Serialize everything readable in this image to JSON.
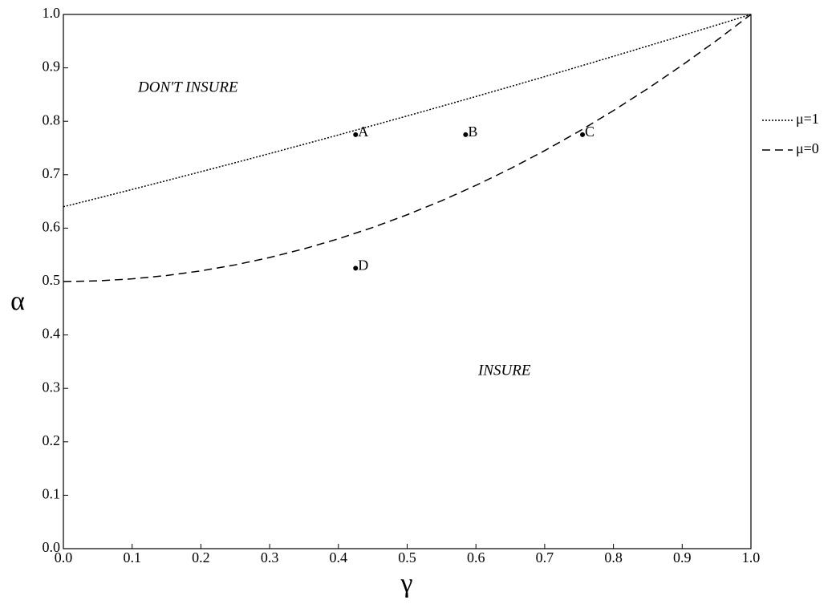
{
  "chart_data": {
    "type": "line",
    "xlabel": "γ",
    "ylabel": "α",
    "x": [
      0,
      0.05,
      0.1,
      0.15,
      0.2,
      0.25,
      0.3,
      0.35,
      0.4,
      0.45,
      0.5,
      0.55,
      0.6,
      0.65,
      0.7,
      0.75,
      0.8,
      0.85,
      0.9,
      0.95,
      1
    ],
    "series": [
      {
        "name": "μ=1",
        "color": "#000",
        "style": "dotted",
        "values": [
          0.64,
          0.6561,
          0.6724,
          0.6889,
          0.7056,
          0.7225,
          0.7396,
          0.7569,
          0.7744,
          0.7921,
          0.81,
          0.8281,
          0.8464,
          0.8649,
          0.8836,
          0.9025,
          0.9216,
          0.9409,
          0.9604,
          0.9801,
          1
        ]
      },
      {
        "name": "μ=0",
        "color": "#000",
        "style": "dashed",
        "values": [
          0.5,
          0.50125,
          0.505,
          0.51125,
          0.52,
          0.53125,
          0.545,
          0.56125,
          0.58,
          0.60125,
          0.625,
          0.65125,
          0.68,
          0.71125,
          0.745,
          0.78125,
          0.82,
          0.86125,
          0.905,
          0.95125,
          1
        ]
      }
    ],
    "points": [
      {
        "label": "A",
        "x": 0.425,
        "y": 0.775
      },
      {
        "label": "B",
        "x": 0.585,
        "y": 0.775
      },
      {
        "label": "C",
        "x": 0.755,
        "y": 0.775
      },
      {
        "label": "D",
        "x": 0.425,
        "y": 0.525
      }
    ],
    "annotations": [
      "DON'T INSURE",
      "INSURE"
    ],
    "xlim": [
      0,
      1
    ],
    "ylim": [
      0,
      1
    ],
    "xticks": [
      {
        "value": 0,
        "label": "0.0"
      },
      0.1,
      0.2,
      0.3,
      0.4,
      0.5,
      0.6,
      0.7,
      0.8,
      0.9,
      {
        "value": 1,
        "label": "1.0"
      }
    ],
    "yticks": [
      {
        "value": 0,
        "label": "0.0"
      },
      0.1,
      0.2,
      0.3,
      0.4,
      0.5,
      0.6,
      0.7,
      0.8,
      0.9,
      {
        "value": 1,
        "label": "1.0"
      }
    ],
    "grid": false,
    "legend": "right"
  }
}
